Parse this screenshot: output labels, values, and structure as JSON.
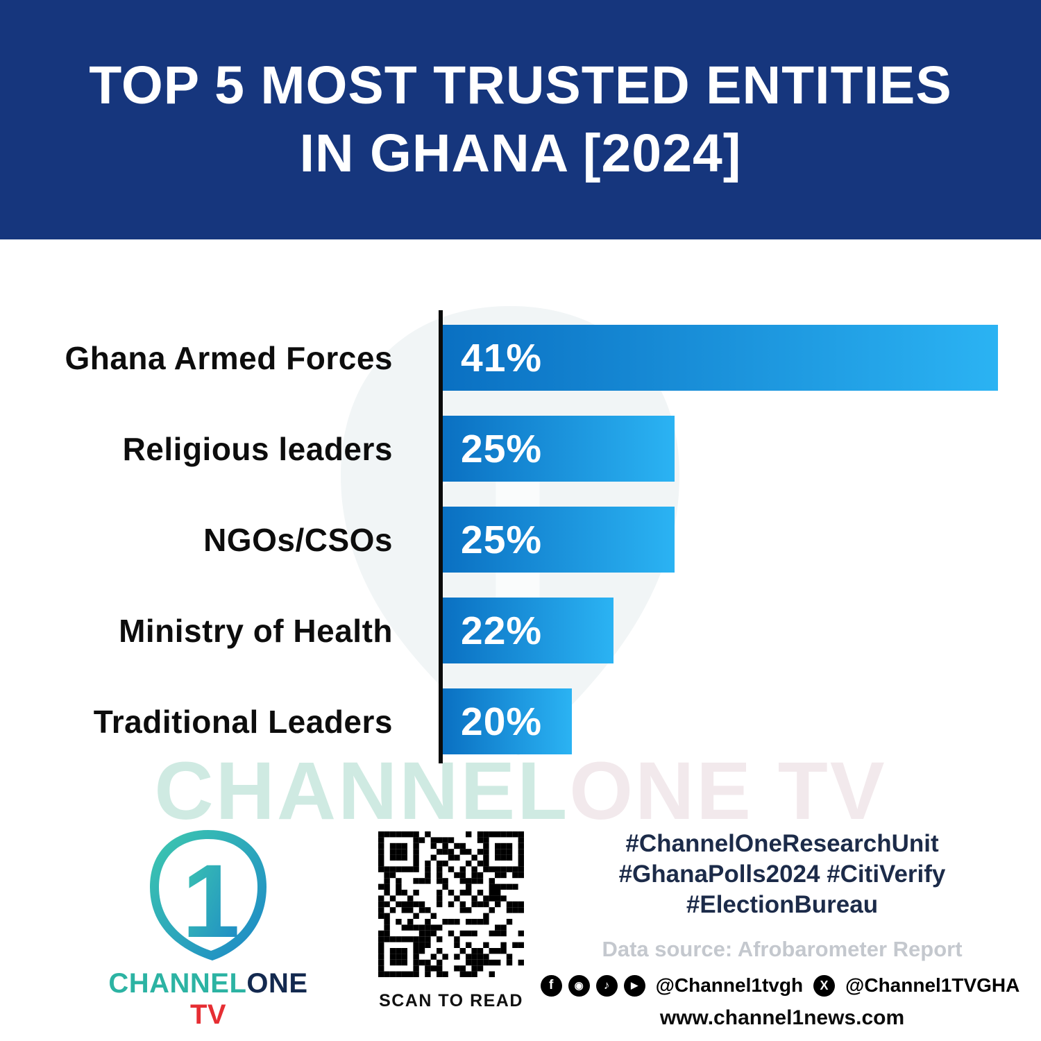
{
  "colors": {
    "header_bg": "#16367d",
    "bar_start": "#0a70c2",
    "bar_end": "#2bb3f3",
    "watermark_teal": "#cfeae2",
    "watermark_light": "#f2e9ec",
    "logo_teal": "#2cb3a3",
    "logo_navy": "#13294f",
    "logo_red": "#e62e33",
    "hashtag_color": "#1c2b49",
    "source_color": "#c4c8ce"
  },
  "header": {
    "title_line1": "TOP 5 MOST TRUSTED ENTITIES",
    "title_line2": "IN GHANA [2024]"
  },
  "chart_data": {
    "type": "bar",
    "orientation": "horizontal",
    "title": "TOP 5 MOST TRUSTED ENTITIES IN GHANA [2024]",
    "categories": [
      "Ghana Armed Forces",
      "Religious leaders",
      "NGOs/CSOs",
      "Ministry of Health",
      "Traditional Leaders"
    ],
    "values": [
      41,
      25,
      25,
      22,
      20
    ],
    "value_labels": [
      "41%",
      "25%",
      "25%",
      "22%",
      "20%"
    ],
    "unit": "percent",
    "xlim": [
      0,
      41
    ],
    "grid": false,
    "legend": false,
    "bar_display_width_pct": [
      100,
      41.8,
      41.8,
      30.8,
      23.2
    ],
    "bar_gradient": [
      "#0a70c2",
      "#2bb3f3"
    ],
    "axis_color": "#0b0b0b"
  },
  "watermark": {
    "part1": "CHANNEL",
    "part2": "ONE TV"
  },
  "footer": {
    "logo": {
      "digit": "1",
      "channel": "CHANNEL",
      "one": "ONE",
      "tv": " TV"
    },
    "qr_caption": "SCAN TO READ",
    "hashtags": [
      "#ChannelOneResearchUnit",
      "#GhanaPolls2024 #CitiVerify",
      "#ElectionBureau"
    ],
    "data_source": "Data source: Afrobarometer Report",
    "social": {
      "icons": [
        "facebook-icon",
        "instagram-icon",
        "tiktok-icon",
        "youtube-icon"
      ],
      "handle1": "@Channel1tvgh",
      "x_icon": "x-icon",
      "handle2": "@Channel1TVGHA"
    },
    "website": "www.channel1news.com"
  }
}
